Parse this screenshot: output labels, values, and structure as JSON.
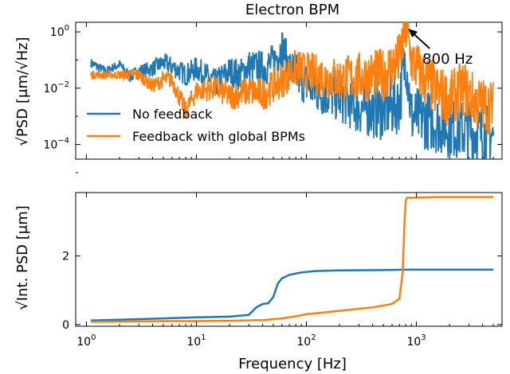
{
  "colors": {
    "no_feedback": "#1f77b4",
    "feedback": "#ff7f0e"
  },
  "chart_data": [
    {
      "type": "line",
      "title": "Electron BPM",
      "xscale": "log",
      "yscale": "log",
      "xlim": [
        0.8,
        6000
      ],
      "ylim": [
        3e-05,
        2.2
      ],
      "yticks": [
        1,
        0.01,
        0.0001
      ],
      "ytick_labels": [
        "10^0",
        "10^-2",
        "10^-4"
      ],
      "ylabel_main": "PSD",
      "ylabel_units": "[μm/",
      "ylabel_units_sqrt": "Hz",
      "ylabel_units_close": "]",
      "legend": "lower-left",
      "annotation": {
        "text": "800 Hz",
        "x": 800,
        "y": 1.4
      },
      "series": [
        {
          "name": "No feedback",
          "color": "#1f77b4"
        },
        {
          "name": "Feedback with global BPMs",
          "color": "#ff7f0e"
        }
      ],
      "no_feedback_anchors": [
        [
          1.1,
          0.08
        ],
        [
          1.5,
          0.04
        ],
        [
          2.0,
          0.07
        ],
        [
          2.5,
          0.025
        ],
        [
          3.0,
          0.04
        ],
        [
          4.0,
          0.05
        ],
        [
          5.0,
          0.08
        ],
        [
          6.0,
          0.06
        ],
        [
          8.0,
          0.03
        ],
        [
          10.0,
          0.05
        ],
        [
          12.0,
          0.03
        ],
        [
          15.0,
          0.015
        ],
        [
          20.0,
          0.04
        ],
        [
          25.0,
          0.03
        ],
        [
          30.0,
          0.06
        ],
        [
          40.0,
          0.05
        ],
        [
          50.0,
          0.08
        ],
        [
          60.0,
          0.3
        ],
        [
          70.0,
          0.05
        ],
        [
          90.0,
          0.02
        ],
        [
          120.0,
          0.008
        ],
        [
          200.0,
          0.005
        ],
        [
          300.0,
          0.002
        ],
        [
          500.0,
          0.0015
        ],
        [
          700.0,
          0.003
        ],
        [
          800.0,
          0.15
        ],
        [
          900.0,
          0.001
        ],
        [
          1200.0,
          0.0008
        ],
        [
          2000.0,
          0.0004
        ],
        [
          3000.0,
          0.0003
        ],
        [
          5000.0,
          0.0002
        ]
      ],
      "feedback_anchors": [
        [
          1.1,
          0.03
        ],
        [
          2.0,
          0.03
        ],
        [
          3.0,
          0.03
        ],
        [
          4.0,
          0.012
        ],
        [
          5.0,
          0.02
        ],
        [
          6.0,
          0.02
        ],
        [
          8.0,
          0.0015
        ],
        [
          10.0,
          0.008
        ],
        [
          15.0,
          0.01
        ],
        [
          20.0,
          0.005
        ],
        [
          30.0,
          0.008
        ],
        [
          40.0,
          0.006
        ],
        [
          60.0,
          0.02
        ],
        [
          80.0,
          0.05
        ],
        [
          120.0,
          0.03
        ],
        [
          200.0,
          0.02
        ],
        [
          300.0,
          0.025
        ],
        [
          500.0,
          0.03
        ],
        [
          700.0,
          0.1
        ],
        [
          800.0,
          1.4
        ],
        [
          900.0,
          0.1
        ],
        [
          1200.0,
          0.02
        ],
        [
          1500.0,
          0.008
        ],
        [
          2000.0,
          0.004
        ],
        [
          2700.0,
          0.01
        ],
        [
          3500.0,
          0.003
        ],
        [
          5000.0,
          0.002
        ]
      ]
    },
    {
      "type": "line",
      "xscale": "log",
      "yscale": "linear",
      "xlim": [
        0.8,
        6000
      ],
      "ylim": [
        -0.05,
        3.85
      ],
      "yticks": [
        0,
        2
      ],
      "ytick_labels": [
        "0",
        "2"
      ],
      "ylabel": "Int. PSD  [μm]",
      "xlabel": "Frequency [Hz]",
      "xticks": [
        1,
        10,
        100,
        1000
      ],
      "xtick_labels": [
        "10^0",
        "10^1",
        "10^2",
        "10^3"
      ],
      "series": [
        {
          "name": "No feedback",
          "color": "#1f77b4",
          "x": [
            1.1,
            2,
            5,
            10,
            20,
            30,
            35,
            40,
            45,
            50,
            55,
            60,
            70,
            90,
            120,
            200,
            500,
            800,
            2000,
            5000
          ],
          "y": [
            0.12,
            0.14,
            0.18,
            0.21,
            0.23,
            0.28,
            0.5,
            0.6,
            0.62,
            0.8,
            1.2,
            1.35,
            1.45,
            1.52,
            1.56,
            1.58,
            1.59,
            1.6,
            1.6,
            1.6
          ]
        },
        {
          "name": "Feedback with global BPMs",
          "color": "#ff7f0e",
          "x": [
            1.1,
            2,
            5,
            10,
            20,
            40,
            60,
            80,
            100,
            200,
            400,
            600,
            700,
            750,
            780,
            800,
            820,
            900,
            1500,
            5000
          ],
          "y": [
            0.08,
            0.09,
            0.1,
            0.1,
            0.11,
            0.13,
            0.18,
            0.24,
            0.3,
            0.4,
            0.5,
            0.6,
            0.75,
            1.5,
            3.0,
            3.6,
            3.7,
            3.7,
            3.72,
            3.72
          ]
        }
      ]
    }
  ]
}
